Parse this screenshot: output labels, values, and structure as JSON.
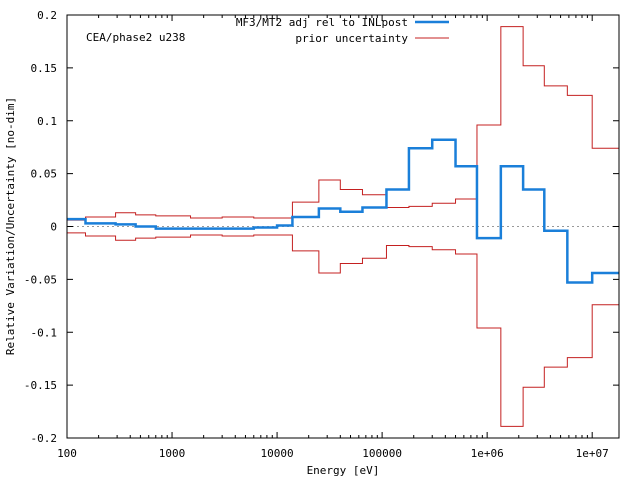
{
  "chart_data": {
    "type": "line",
    "annotation": "CEA/phase2 u238",
    "xlabel": "Energy [eV]",
    "ylabel": "Relative Variation/Uncertainty [no-dim]",
    "xscale": "log",
    "xlim": [
      100,
      18000000
    ],
    "ylim": [
      -0.2,
      0.2
    ],
    "x_ticks": [
      100,
      1000,
      10000,
      100000,
      1000000,
      10000000
    ],
    "x_tick_labels": [
      "100",
      "1000",
      "10000",
      "100000",
      "1e+06",
      "1e+07"
    ],
    "y_ticks": [
      -0.2,
      -0.15,
      -0.1,
      -0.05,
      0,
      0.05,
      0.1,
      0.15,
      0.2
    ],
    "y_tick_labels": [
      "-0.2",
      "-0.15",
      "-0.1",
      "-0.05",
      "0",
      "0.05",
      "0.1",
      "0.15",
      "0.2"
    ],
    "grid": false,
    "zero_line": true,
    "legend_position": "top-right",
    "series": [
      {
        "name": "MF3/MT2 adj rel to INLpost",
        "color": "#1a7fd9",
        "style": "step-thick",
        "bin_edges": [
          100,
          150,
          290,
          450,
          700,
          1500,
          3000,
          6000,
          10000,
          14000,
          25000,
          40000,
          65000,
          110000,
          180000,
          300000,
          500000,
          800000,
          1350000,
          2200000,
          3500000,
          5800000,
          10000000,
          18000000
        ],
        "values": [
          0.007,
          0.003,
          0.002,
          0.0,
          -0.002,
          -0.002,
          -0.002,
          -0.001,
          0.001,
          0.009,
          0.017,
          0.014,
          0.018,
          0.035,
          0.074,
          0.082,
          0.057,
          -0.011,
          0.057,
          0.035,
          -0.004,
          -0.053,
          -0.044
        ]
      },
      {
        "name": "prior uncertainty",
        "color": "#c42020",
        "style": "step-symmetric",
        "bin_edges": [
          100,
          150,
          290,
          450,
          700,
          1500,
          3000,
          6000,
          10000,
          14000,
          25000,
          40000,
          65000,
          110000,
          180000,
          300000,
          500000,
          800000,
          1350000,
          2200000,
          3500000,
          5800000,
          10000000,
          18000000
        ],
        "values": [
          0.006,
          0.009,
          0.013,
          0.011,
          0.01,
          0.008,
          0.009,
          0.008,
          0.008,
          0.023,
          0.044,
          0.035,
          0.03,
          0.018,
          0.019,
          0.022,
          0.026,
          0.096,
          0.189,
          0.152,
          0.133,
          0.124,
          0.074
        ]
      }
    ]
  }
}
